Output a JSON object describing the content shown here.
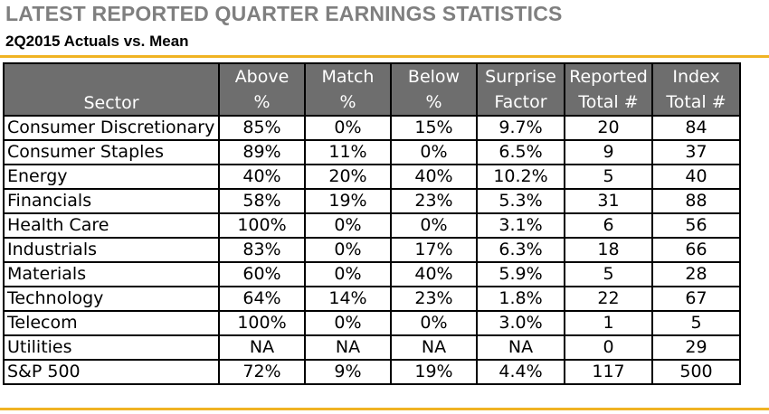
{
  "title": "LATEST REPORTED QUARTER EARNINGS STATISTICS",
  "subtitle": "2Q2015 Actuals vs. Mean",
  "colors": {
    "accent_rule": "#f0b323",
    "header_bg": "#6e6e6e",
    "title_gray": "#7f7f7f"
  },
  "table": {
    "headers": [
      {
        "line1": "",
        "line2": "Sector"
      },
      {
        "line1": "Above",
        "line2": "%"
      },
      {
        "line1": "Match",
        "line2": "%"
      },
      {
        "line1": "Below",
        "line2": "%"
      },
      {
        "line1": "Surprise",
        "line2": "Factor"
      },
      {
        "line1": "Reported",
        "line2": "Total #"
      },
      {
        "line1": "Index",
        "line2": "Total #"
      }
    ],
    "rows": [
      [
        "Consumer Discretionary",
        "85%",
        "0%",
        "15%",
        "9.7%",
        "20",
        "84"
      ],
      [
        "Consumer Staples",
        "89%",
        "11%",
        "0%",
        "6.5%",
        "9",
        "37"
      ],
      [
        "Energy",
        "40%",
        "20%",
        "40%",
        "10.2%",
        "5",
        "40"
      ],
      [
        "Financials",
        "58%",
        "19%",
        "23%",
        "5.3%",
        "31",
        "88"
      ],
      [
        "Health Care",
        "100%",
        "0%",
        "0%",
        "3.1%",
        "6",
        "56"
      ],
      [
        "Industrials",
        "83%",
        "0%",
        "17%",
        "6.3%",
        "18",
        "66"
      ],
      [
        "Materials",
        "60%",
        "0%",
        "40%",
        "5.9%",
        "5",
        "28"
      ],
      [
        "Technology",
        "64%",
        "14%",
        "23%",
        "1.8%",
        "22",
        "67"
      ],
      [
        "Telecom",
        "100%",
        "0%",
        "0%",
        "3.0%",
        "1",
        "5"
      ],
      [
        "Utilities",
        "NA",
        "NA",
        "NA",
        "NA",
        "0",
        "29"
      ],
      [
        "S&P 500",
        "72%",
        "9%",
        "19%",
        "4.4%",
        "117",
        "500"
      ]
    ]
  }
}
